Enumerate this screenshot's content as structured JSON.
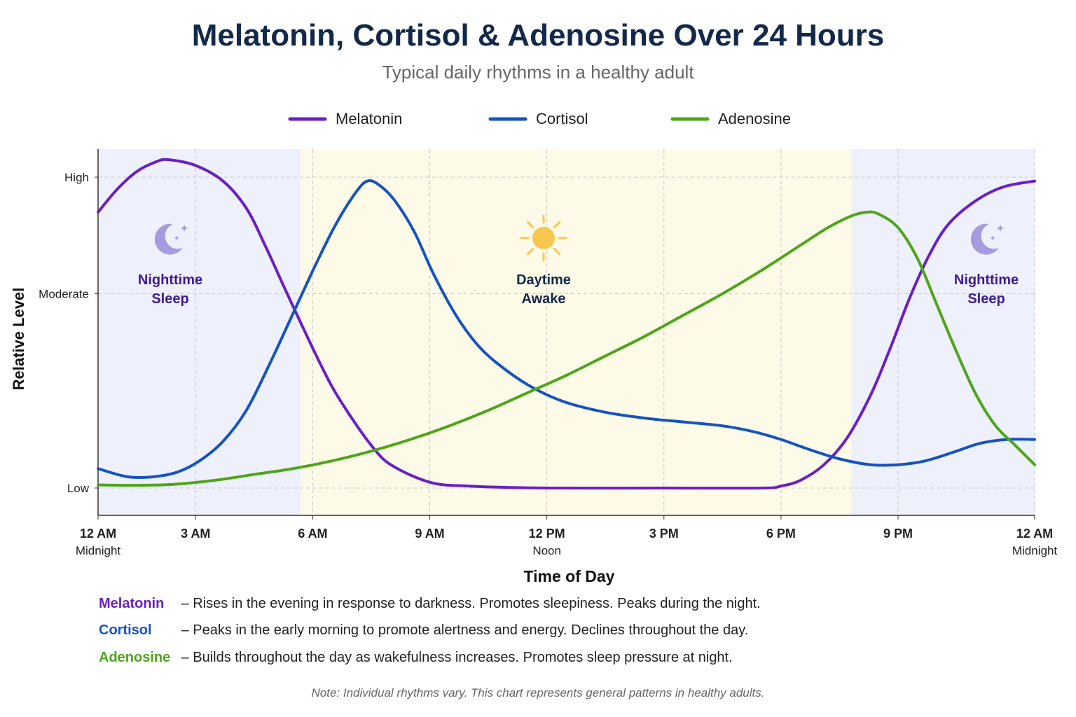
{
  "title": "Melatonin, Cortisol & Adenosine Over 24 Hours",
  "subtitle": "Typical daily rhythms in a healthy adult",
  "colors": {
    "melatonin": "#6a1fc4",
    "cortisol": "#1553c2",
    "adenosine": "#4ea51a",
    "night_bg": "#eef0fb",
    "day_bg": "#fdfbe8",
    "night_text": "#3a1a9c",
    "day_text": "#13294b",
    "moon": "#a79be0",
    "sun": "#f9c74f"
  },
  "chart_data": {
    "type": "line",
    "xlabel": "Time of Day",
    "ylabel": "Relative Level",
    "xlim": [
      0,
      24
    ],
    "y_ticks": [
      {
        "label": "High",
        "value": 80
      },
      {
        "label": "Moderate",
        "value": 50
      },
      {
        "label": "Low",
        "value": 0
      }
    ],
    "x_ticks": [
      {
        "hour": 0,
        "label": "12 AM",
        "sublabel": "Midnight"
      },
      {
        "hour": 2.5,
        "label": "3 AM",
        "sublabel": ""
      },
      {
        "hour": 5.5,
        "label": "6 AM",
        "sublabel": ""
      },
      {
        "hour": 8.5,
        "label": "9 AM",
        "sublabel": ""
      },
      {
        "hour": 11.5,
        "label": "12 PM",
        "sublabel": "Noon"
      },
      {
        "hour": 14.5,
        "label": "3 PM",
        "sublabel": ""
      },
      {
        "hour": 17.5,
        "label": "6 PM",
        "sublabel": ""
      },
      {
        "hour": 20.5,
        "label": "9 PM",
        "sublabel": ""
      },
      {
        "hour": 24,
        "label": "12 AM",
        "sublabel": "Midnight"
      }
    ],
    "grid": true,
    "legend_position": "top-center",
    "regions": [
      {
        "name": "night",
        "start": 0,
        "end": 5.2,
        "label_lines": [
          "Nighttime",
          "Sleep"
        ],
        "icon": "moon-icon"
      },
      {
        "name": "day",
        "start": 5.2,
        "end": 19.3,
        "label_lines": [
          "Daytime",
          "Awake"
        ],
        "icon": "sun-icon"
      },
      {
        "name": "night",
        "start": 19.3,
        "end": 24,
        "label_lines": [
          "Nighttime",
          "Sleep"
        ],
        "icon": "moon-icon"
      }
    ],
    "series": [
      {
        "name": "Melatonin",
        "color": "#6a1fc4",
        "points": [
          [
            0,
            71
          ],
          [
            0.5,
            77
          ],
          [
            1,
            81.5
          ],
          [
            1.5,
            84
          ],
          [
            1.8,
            84.5
          ],
          [
            2.5,
            83
          ],
          [
            3.2,
            79
          ],
          [
            3.8,
            72
          ],
          [
            4.3,
            62
          ],
          [
            4.8,
            51
          ],
          [
            5.5,
            36
          ],
          [
            6,
            26
          ],
          [
            6.5,
            18
          ],
          [
            7,
            11
          ],
          [
            7.5,
            6
          ],
          [
            8.5,
            1.5
          ],
          [
            9.5,
            0.5
          ],
          [
            11.5,
            0
          ],
          [
            14.5,
            0
          ],
          [
            17,
            0
          ],
          [
            17.5,
            0.5
          ],
          [
            18,
            2
          ],
          [
            18.6,
            6
          ],
          [
            19.2,
            13
          ],
          [
            19.8,
            24
          ],
          [
            20.3,
            36
          ],
          [
            20.8,
            49
          ],
          [
            21.3,
            60
          ],
          [
            21.8,
            68
          ],
          [
            22.5,
            74
          ],
          [
            23.2,
            77.5
          ],
          [
            24,
            79
          ]
        ]
      },
      {
        "name": "Cortisol",
        "color": "#1553c2",
        "points": [
          [
            0,
            5
          ],
          [
            0.7,
            3
          ],
          [
            1.3,
            2.8
          ],
          [
            2,
            4
          ],
          [
            2.6,
            7
          ],
          [
            3.2,
            12
          ],
          [
            3.8,
            20
          ],
          [
            4.4,
            32
          ],
          [
            5,
            45
          ],
          [
            5.6,
            58
          ],
          [
            6.1,
            68
          ],
          [
            6.6,
            76
          ],
          [
            6.9,
            79
          ],
          [
            7.2,
            78
          ],
          [
            7.6,
            74
          ],
          [
            8.1,
            66
          ],
          [
            8.6,
            55
          ],
          [
            9.2,
            44
          ],
          [
            9.8,
            36
          ],
          [
            10.5,
            30
          ],
          [
            11.2,
            25.5
          ],
          [
            12,
            22
          ],
          [
            13,
            19.5
          ],
          [
            14,
            18
          ],
          [
            15,
            17
          ],
          [
            16,
            16
          ],
          [
            16.8,
            14.5
          ],
          [
            17.5,
            12.5
          ],
          [
            18.2,
            10
          ],
          [
            19,
            7.5
          ],
          [
            19.8,
            6
          ],
          [
            20.5,
            6
          ],
          [
            21.2,
            7
          ],
          [
            22,
            9.5
          ],
          [
            22.6,
            11.5
          ],
          [
            23.3,
            12.5
          ],
          [
            24,
            12.5
          ]
        ]
      },
      {
        "name": "Adenosine",
        "color": "#4ea51a",
        "points": [
          [
            0,
            0.8
          ],
          [
            1,
            0.7
          ],
          [
            2,
            1
          ],
          [
            3,
            2
          ],
          [
            4,
            3.5
          ],
          [
            5,
            5
          ],
          [
            6,
            7
          ],
          [
            7,
            9.5
          ],
          [
            8,
            12.5
          ],
          [
            9,
            16
          ],
          [
            10,
            20
          ],
          [
            11,
            24.5
          ],
          [
            12,
            29
          ],
          [
            13,
            34
          ],
          [
            14,
            39
          ],
          [
            15,
            44.5
          ],
          [
            16,
            50
          ],
          [
            17,
            56
          ],
          [
            18,
            62.5
          ],
          [
            18.7,
            67
          ],
          [
            19.3,
            70
          ],
          [
            19.7,
            71
          ],
          [
            20,
            70.5
          ],
          [
            20.5,
            67
          ],
          [
            21,
            59
          ],
          [
            21.5,
            47
          ],
          [
            22,
            35
          ],
          [
            22.5,
            24
          ],
          [
            23,
            16
          ],
          [
            23.5,
            11
          ],
          [
            24,
            6
          ]
        ]
      }
    ]
  },
  "descriptions": [
    {
      "name": "Melatonin",
      "text": "– Rises in the evening in response to darkness. Promotes sleepiness. Peaks during the night."
    },
    {
      "name": "Cortisol",
      "text": "– Peaks in the early morning to promote alertness and energy. Declines throughout the day."
    },
    {
      "name": "Adenosine",
      "text": "– Builds throughout the day as wakefulness increases. Promotes sleep pressure at night."
    }
  ],
  "note": "Note: Individual rhythms vary. This chart represents general patterns in healthy adults."
}
